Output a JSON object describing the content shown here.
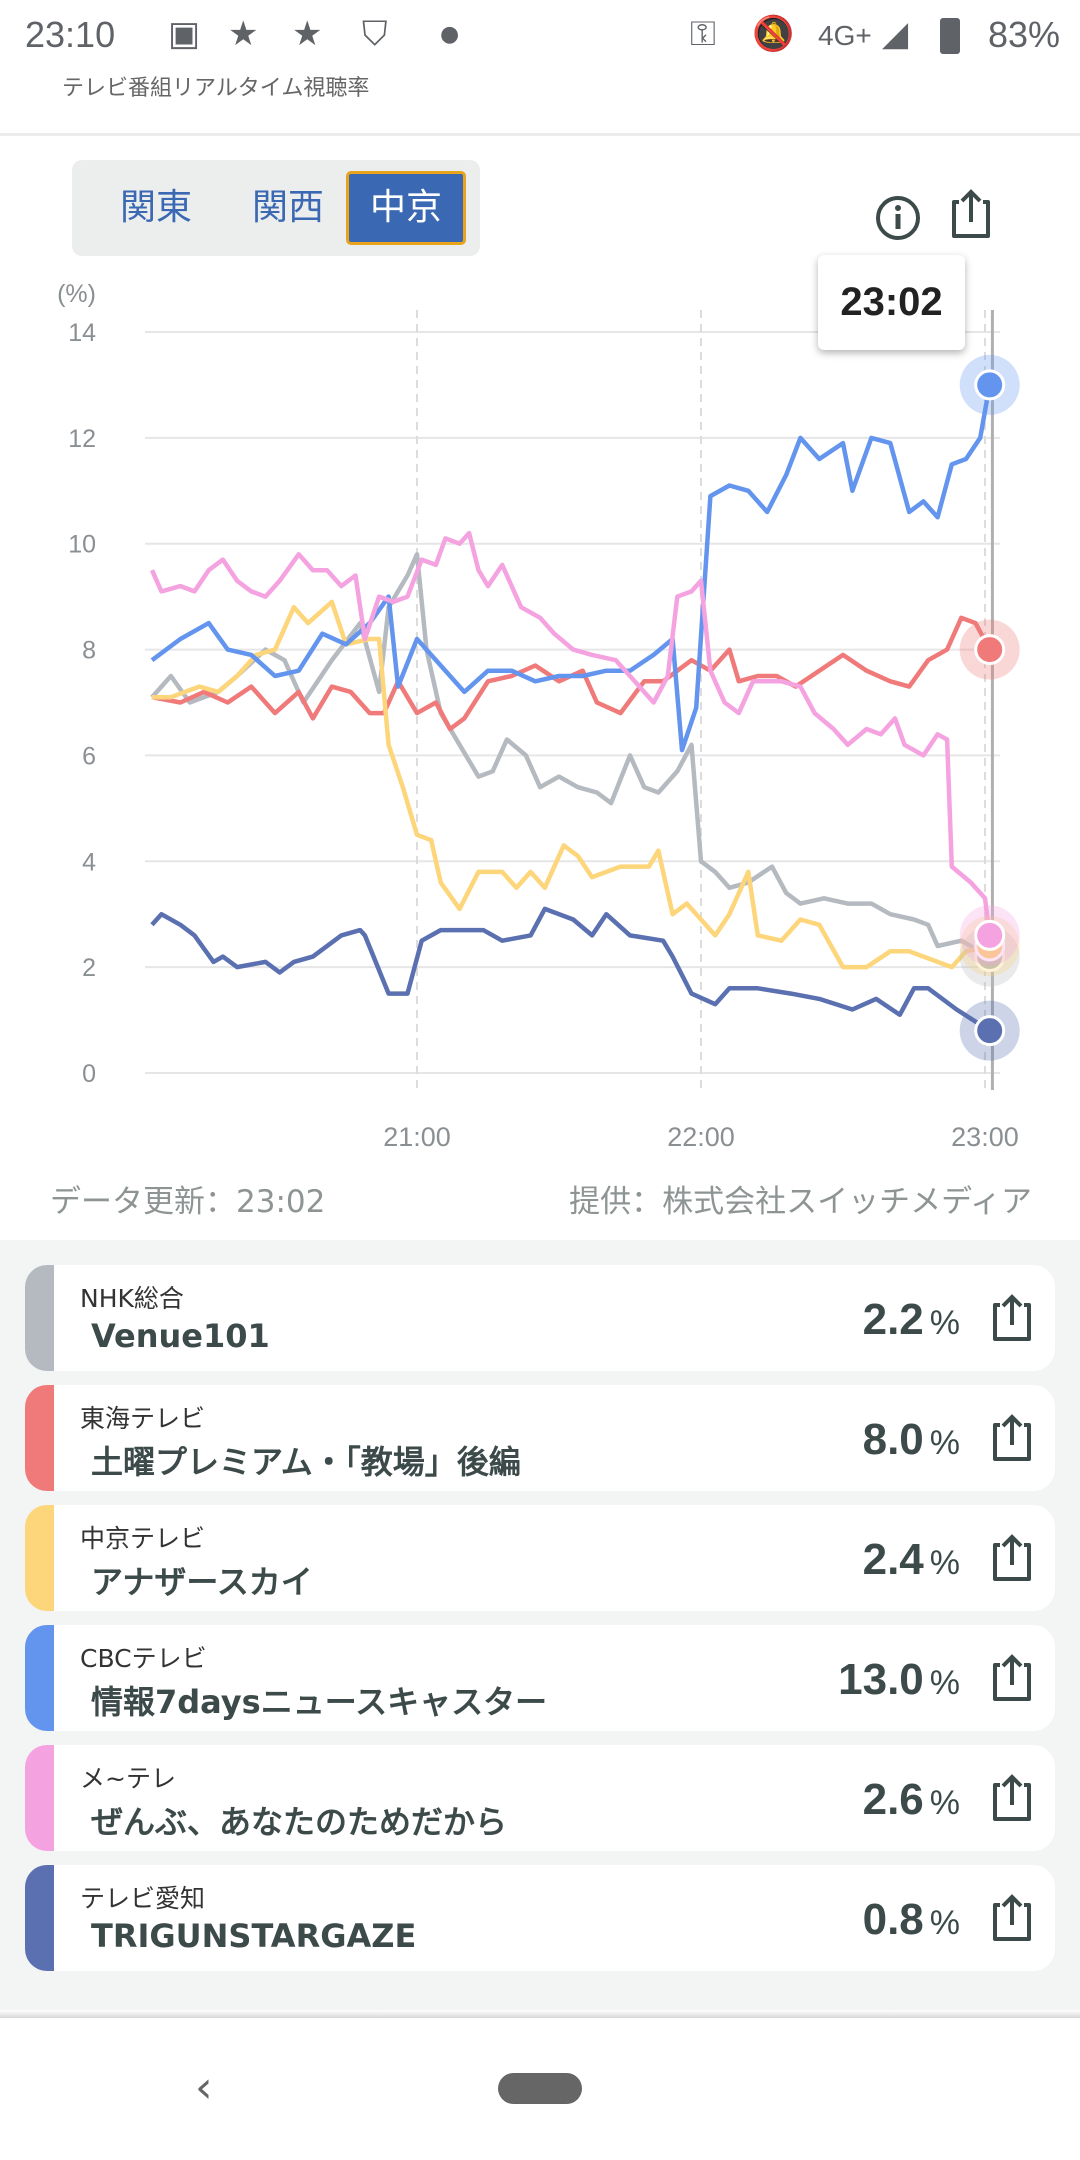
{
  "status_bar": {
    "time": "23:10",
    "network": "4G+",
    "battery": "83%",
    "icons": [
      "image-icon",
      "star-icon",
      "star-icon",
      "shield-icon",
      "dot-icon",
      "vpn-key-icon",
      "bell-off-icon",
      "signal-icon",
      "battery-icon"
    ]
  },
  "app_title": "テレビ番組リアルタイム視聴率",
  "regions": [
    {
      "label": "関東",
      "selected": false
    },
    {
      "label": "関西",
      "selected": false
    },
    {
      "label": "中京",
      "selected": true
    }
  ],
  "tooltip_time": "23:02",
  "footer": {
    "updated": "データ更新：23:02",
    "provider": "提供：株式会社スイッチメディア"
  },
  "colors": {
    "nhk": "#b5bac1",
    "tokai": "#f07a7a",
    "chukyo": "#fdd57a",
    "cbc": "#6495ee",
    "metele": "#f5a3e0",
    "aichi": "#5a70b0",
    "accent": "#3a68b2"
  },
  "chart_data": {
    "type": "line",
    "ylabel": "(%)",
    "ylim": [
      0,
      14
    ],
    "yticks": [
      "0",
      "2",
      "4",
      "6",
      "8",
      "10",
      "12",
      "14"
    ],
    "x_unit": "minutes after 20:00",
    "xticks": [
      {
        "x": 60,
        "label": "21:00"
      },
      {
        "x": 120,
        "label": "22:00"
      },
      {
        "x": 180,
        "label": "23:00"
      }
    ],
    "grid": true,
    "cursor_x": 182,
    "series": [
      {
        "name": "NHK総合",
        "color": "#b5bac1",
        "points": [
          [
            4,
            7.1
          ],
          [
            8,
            7.5
          ],
          [
            12,
            7.0
          ],
          [
            18,
            7.2
          ],
          [
            22,
            7.5
          ],
          [
            28,
            8.0
          ],
          [
            32,
            7.8
          ],
          [
            36,
            7.0
          ],
          [
            42,
            7.8
          ],
          [
            48,
            8.5
          ],
          [
            52,
            7.2
          ],
          [
            54,
            8.8
          ],
          [
            58,
            9.4
          ],
          [
            60,
            9.8
          ],
          [
            62,
            8.0
          ],
          [
            65,
            6.8
          ],
          [
            69,
            6.2
          ],
          [
            73,
            5.6
          ],
          [
            76,
            5.7
          ],
          [
            79,
            6.3
          ],
          [
            83,
            6.0
          ],
          [
            86,
            5.4
          ],
          [
            90,
            5.6
          ],
          [
            94,
            5.4
          ],
          [
            98,
            5.3
          ],
          [
            101,
            5.1
          ],
          [
            105,
            6.0
          ],
          [
            108,
            5.4
          ],
          [
            111,
            5.3
          ],
          [
            115,
            5.7
          ],
          [
            118,
            6.2
          ],
          [
            120,
            4.0
          ],
          [
            123,
            3.8
          ],
          [
            126,
            3.5
          ],
          [
            130,
            3.6
          ],
          [
            135,
            3.9
          ],
          [
            138,
            3.4
          ],
          [
            141,
            3.2
          ],
          [
            146,
            3.3
          ],
          [
            151,
            3.2
          ],
          [
            156,
            3.2
          ],
          [
            160,
            3.0
          ],
          [
            165,
            2.9
          ],
          [
            168,
            2.8
          ],
          [
            170,
            2.4
          ],
          [
            175,
            2.5
          ],
          [
            181,
            2.2
          ]
        ]
      },
      {
        "name": "東海テレビ",
        "color": "#f07a7a",
        "points": [
          [
            4,
            7.1
          ],
          [
            10,
            7.0
          ],
          [
            15,
            7.2
          ],
          [
            20,
            7.0
          ],
          [
            25,
            7.3
          ],
          [
            30,
            6.8
          ],
          [
            35,
            7.2
          ],
          [
            38,
            6.7
          ],
          [
            42,
            7.3
          ],
          [
            46,
            7.2
          ],
          [
            50,
            6.8
          ],
          [
            53,
            6.8
          ],
          [
            56,
            7.4
          ],
          [
            60,
            6.8
          ],
          [
            64,
            7.0
          ],
          [
            67,
            6.5
          ],
          [
            70,
            6.7
          ],
          [
            75,
            7.4
          ],
          [
            80,
            7.5
          ],
          [
            85,
            7.7
          ],
          [
            90,
            7.4
          ],
          [
            95,
            7.6
          ],
          [
            98,
            7.0
          ],
          [
            103,
            6.8
          ],
          [
            108,
            7.4
          ],
          [
            112,
            7.4
          ],
          [
            118,
            7.8
          ],
          [
            122,
            7.6
          ],
          [
            126,
            8.0
          ],
          [
            128,
            7.4
          ],
          [
            132,
            7.5
          ],
          [
            136,
            7.5
          ],
          [
            140,
            7.3
          ],
          [
            145,
            7.6
          ],
          [
            150,
            7.9
          ],
          [
            155,
            7.6
          ],
          [
            160,
            7.4
          ],
          [
            164,
            7.3
          ],
          [
            168,
            7.8
          ],
          [
            172,
            8.0
          ],
          [
            175,
            8.6
          ],
          [
            178,
            8.5
          ],
          [
            181,
            8.0
          ]
        ]
      },
      {
        "name": "中京テレビ",
        "color": "#fdd57a",
        "points": [
          [
            4,
            7.1
          ],
          [
            8,
            7.1
          ],
          [
            14,
            7.3
          ],
          [
            18,
            7.2
          ],
          [
            22,
            7.5
          ],
          [
            26,
            7.9
          ],
          [
            30,
            8.0
          ],
          [
            34,
            8.8
          ],
          [
            37,
            8.5
          ],
          [
            42,
            8.9
          ],
          [
            45,
            8.1
          ],
          [
            50,
            8.2
          ],
          [
            52,
            8.2
          ],
          [
            54,
            6.2
          ],
          [
            57,
            5.4
          ],
          [
            60,
            4.5
          ],
          [
            63,
            4.4
          ],
          [
            65,
            3.6
          ],
          [
            69,
            3.1
          ],
          [
            73,
            3.8
          ],
          [
            78,
            3.8
          ],
          [
            81,
            3.5
          ],
          [
            84,
            3.8
          ],
          [
            87,
            3.5
          ],
          [
            91,
            4.3
          ],
          [
            94,
            4.1
          ],
          [
            97,
            3.7
          ],
          [
            103,
            3.9
          ],
          [
            109,
            3.9
          ],
          [
            111,
            4.2
          ],
          [
            114,
            3.0
          ],
          [
            117,
            3.2
          ],
          [
            120,
            2.9
          ],
          [
            123,
            2.6
          ],
          [
            126,
            3.0
          ],
          [
            130,
            3.8
          ],
          [
            132,
            2.6
          ],
          [
            137,
            2.5
          ],
          [
            141,
            2.9
          ],
          [
            145,
            2.8
          ],
          [
            150,
            2.0
          ],
          [
            155,
            2.0
          ],
          [
            160,
            2.3
          ],
          [
            164,
            2.3
          ],
          [
            170,
            2.1
          ],
          [
            173,
            2.0
          ],
          [
            176,
            2.3
          ],
          [
            181,
            2.4
          ]
        ]
      },
      {
        "name": "CBCテレビ",
        "color": "#6495ee",
        "points": [
          [
            4,
            7.8
          ],
          [
            10,
            8.2
          ],
          [
            16,
            8.5
          ],
          [
            20,
            8.0
          ],
          [
            25,
            7.9
          ],
          [
            30,
            7.5
          ],
          [
            35,
            7.6
          ],
          [
            40,
            8.3
          ],
          [
            45,
            8.1
          ],
          [
            50,
            8.5
          ],
          [
            54,
            9.0
          ],
          [
            56,
            7.3
          ],
          [
            60,
            8.2
          ],
          [
            65,
            7.7
          ],
          [
            70,
            7.2
          ],
          [
            75,
            7.6
          ],
          [
            80,
            7.6
          ],
          [
            85,
            7.4
          ],
          [
            90,
            7.5
          ],
          [
            95,
            7.5
          ],
          [
            100,
            7.6
          ],
          [
            105,
            7.6
          ],
          [
            110,
            7.9
          ],
          [
            114,
            8.2
          ],
          [
            116,
            6.1
          ],
          [
            119,
            6.9
          ],
          [
            122,
            10.9
          ],
          [
            126,
            11.1
          ],
          [
            130,
            11.0
          ],
          [
            134,
            10.6
          ],
          [
            138,
            11.3
          ],
          [
            141,
            12.0
          ],
          [
            145,
            11.6
          ],
          [
            150,
            11.9
          ],
          [
            152,
            11.0
          ],
          [
            156,
            12.0
          ],
          [
            160,
            11.9
          ],
          [
            164,
            10.6
          ],
          [
            167,
            10.8
          ],
          [
            170,
            10.5
          ],
          [
            173,
            11.5
          ],
          [
            176,
            11.6
          ],
          [
            179,
            12.0
          ],
          [
            181,
            13.0
          ]
        ]
      },
      {
        "name": "メ~テレ",
        "color": "#f5a3e0",
        "points": [
          [
            4,
            9.5
          ],
          [
            6,
            9.1
          ],
          [
            10,
            9.2
          ],
          [
            13,
            9.1
          ],
          [
            16,
            9.5
          ],
          [
            19,
            9.7
          ],
          [
            22,
            9.3
          ],
          [
            25,
            9.1
          ],
          [
            28,
            9.0
          ],
          [
            31,
            9.3
          ],
          [
            35,
            9.8
          ],
          [
            38,
            9.5
          ],
          [
            41,
            9.5
          ],
          [
            44,
            9.2
          ],
          [
            47,
            9.4
          ],
          [
            49,
            8.2
          ],
          [
            52,
            9.0
          ],
          [
            55,
            8.9
          ],
          [
            58,
            9.0
          ],
          [
            61,
            9.7
          ],
          [
            64,
            9.6
          ],
          [
            66,
            10.1
          ],
          [
            69,
            10.0
          ],
          [
            71,
            10.2
          ],
          [
            73,
            9.5
          ],
          [
            75,
            9.2
          ],
          [
            78,
            9.6
          ],
          [
            82,
            8.8
          ],
          [
            86,
            8.6
          ],
          [
            89,
            8.3
          ],
          [
            93,
            8.0
          ],
          [
            97,
            7.9
          ],
          [
            102,
            7.8
          ],
          [
            106,
            7.4
          ],
          [
            110,
            7.0
          ],
          [
            113,
            7.5
          ],
          [
            115,
            9.0
          ],
          [
            118,
            9.1
          ],
          [
            120,
            9.3
          ],
          [
            122,
            7.6
          ],
          [
            125,
            7.0
          ],
          [
            128,
            6.8
          ],
          [
            131,
            7.4
          ],
          [
            137,
            7.4
          ],
          [
            141,
            7.3
          ],
          [
            144,
            6.8
          ],
          [
            148,
            6.5
          ],
          [
            151,
            6.2
          ],
          [
            155,
            6.5
          ],
          [
            158,
            6.4
          ],
          [
            161,
            6.7
          ],
          [
            163,
            6.2
          ],
          [
            167,
            6.0
          ],
          [
            170,
            6.4
          ],
          [
            172,
            6.3
          ],
          [
            173,
            3.9
          ],
          [
            177,
            3.6
          ],
          [
            180,
            3.3
          ],
          [
            181,
            2.6
          ]
        ]
      },
      {
        "name": "テレビ愛知",
        "color": "#5a70b0",
        "points": [
          [
            4,
            2.8
          ],
          [
            6,
            3.0
          ],
          [
            10,
            2.8
          ],
          [
            13,
            2.6
          ],
          [
            17,
            2.1
          ],
          [
            19,
            2.2
          ],
          [
            22,
            2.0
          ],
          [
            28,
            2.1
          ],
          [
            31,
            1.9
          ],
          [
            34,
            2.1
          ],
          [
            38,
            2.2
          ],
          [
            44,
            2.6
          ],
          [
            48,
            2.7
          ],
          [
            49,
            2.6
          ],
          [
            54,
            1.5
          ],
          [
            58,
            1.5
          ],
          [
            61,
            2.5
          ],
          [
            65,
            2.7
          ],
          [
            74,
            2.7
          ],
          [
            78,
            2.5
          ],
          [
            84,
            2.6
          ],
          [
            87,
            3.1
          ],
          [
            93,
            2.9
          ],
          [
            97,
            2.6
          ],
          [
            100,
            3.0
          ],
          [
            105,
            2.6
          ],
          [
            112,
            2.5
          ],
          [
            114,
            2.2
          ],
          [
            118,
            1.5
          ],
          [
            123,
            1.3
          ],
          [
            126,
            1.6
          ],
          [
            132,
            1.6
          ],
          [
            139,
            1.5
          ],
          [
            145,
            1.4
          ],
          [
            152,
            1.2
          ],
          [
            157,
            1.4
          ],
          [
            162,
            1.1
          ],
          [
            165,
            1.6
          ],
          [
            168,
            1.6
          ],
          [
            174,
            1.2
          ],
          [
            181,
            0.8
          ]
        ]
      }
    ]
  },
  "channels": [
    {
      "channel": "NHK総合",
      "program": "Venue101",
      "rating": "2.2",
      "unit": "%",
      "color": "#b5bac1"
    },
    {
      "channel": "東海テレビ",
      "program": "土曜プレミアム・「教場」後編",
      "rating": "8.0",
      "unit": "%",
      "color": "#f07a7a"
    },
    {
      "channel": "中京テレビ",
      "program": "アナザースカイ",
      "rating": "2.4",
      "unit": "%",
      "color": "#fdd57a"
    },
    {
      "channel": "CBCテレビ",
      "program": "情報7daysニュースキャスター",
      "rating": "13.0",
      "unit": "%",
      "color": "#6495ee"
    },
    {
      "channel": "メ~テレ",
      "program": "ぜんぶ、あなたのためだから",
      "rating": "2.6",
      "unit": "%",
      "color": "#f5a3e0"
    },
    {
      "channel": "テレビ愛知",
      "program": "TRIGUNSTARGAZE",
      "rating": "0.8",
      "unit": "%",
      "color": "#5a70b0"
    }
  ]
}
